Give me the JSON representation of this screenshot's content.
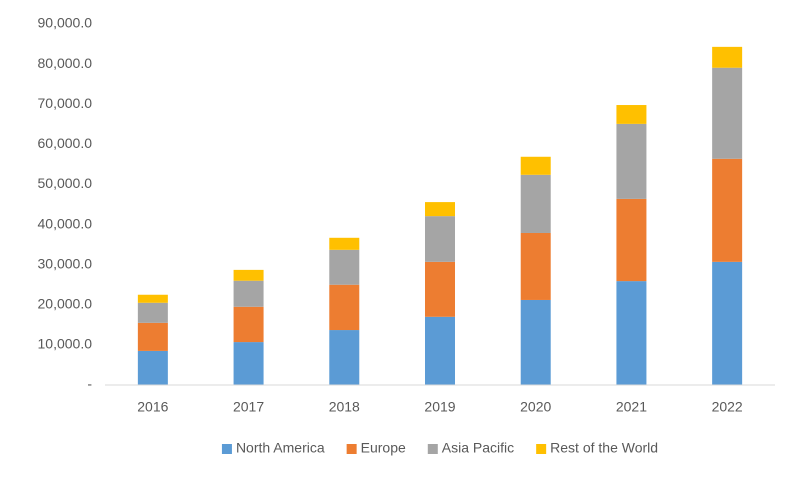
{
  "chart_data": {
    "type": "stacked-bar",
    "categories": [
      "2016",
      "2017",
      "2018",
      "2019",
      "2020",
      "2021",
      "2022"
    ],
    "series": [
      {
        "name": "North America",
        "color": "#5b9bd5",
        "values": [
          8500,
          10700,
          13700,
          17000,
          21200,
          25900,
          30700
        ]
      },
      {
        "name": "Europe",
        "color": "#ed7d31",
        "values": [
          7000,
          8800,
          11300,
          13700,
          16700,
          20500,
          25700
        ]
      },
      {
        "name": "Asia Pacific",
        "color": "#a5a5a5",
        "values": [
          5000,
          6500,
          8700,
          11400,
          14500,
          18700,
          22700
        ]
      },
      {
        "name": "Rest of the World",
        "color": "#ffc000",
        "values": [
          2000,
          2700,
          3000,
          3500,
          4500,
          4700,
          5200
        ]
      }
    ],
    "ylim": [
      0,
      90000
    ],
    "yticks": [
      {
        "value": 0,
        "label": "-"
      },
      {
        "value": 10000,
        "label": "10,000.0"
      },
      {
        "value": 20000,
        "label": "20,000.0"
      },
      {
        "value": 30000,
        "label": "30,000.0"
      },
      {
        "value": 40000,
        "label": "40,000.0"
      },
      {
        "value": 50000,
        "label": "50,000.0"
      },
      {
        "value": 60000,
        "label": "60,000.0"
      },
      {
        "value": 70000,
        "label": "70,000.0"
      },
      {
        "value": 80000,
        "label": "80,000.0"
      },
      {
        "value": 90000,
        "label": "90,000.0"
      }
    ],
    "grid": false,
    "legend": "bottom"
  }
}
